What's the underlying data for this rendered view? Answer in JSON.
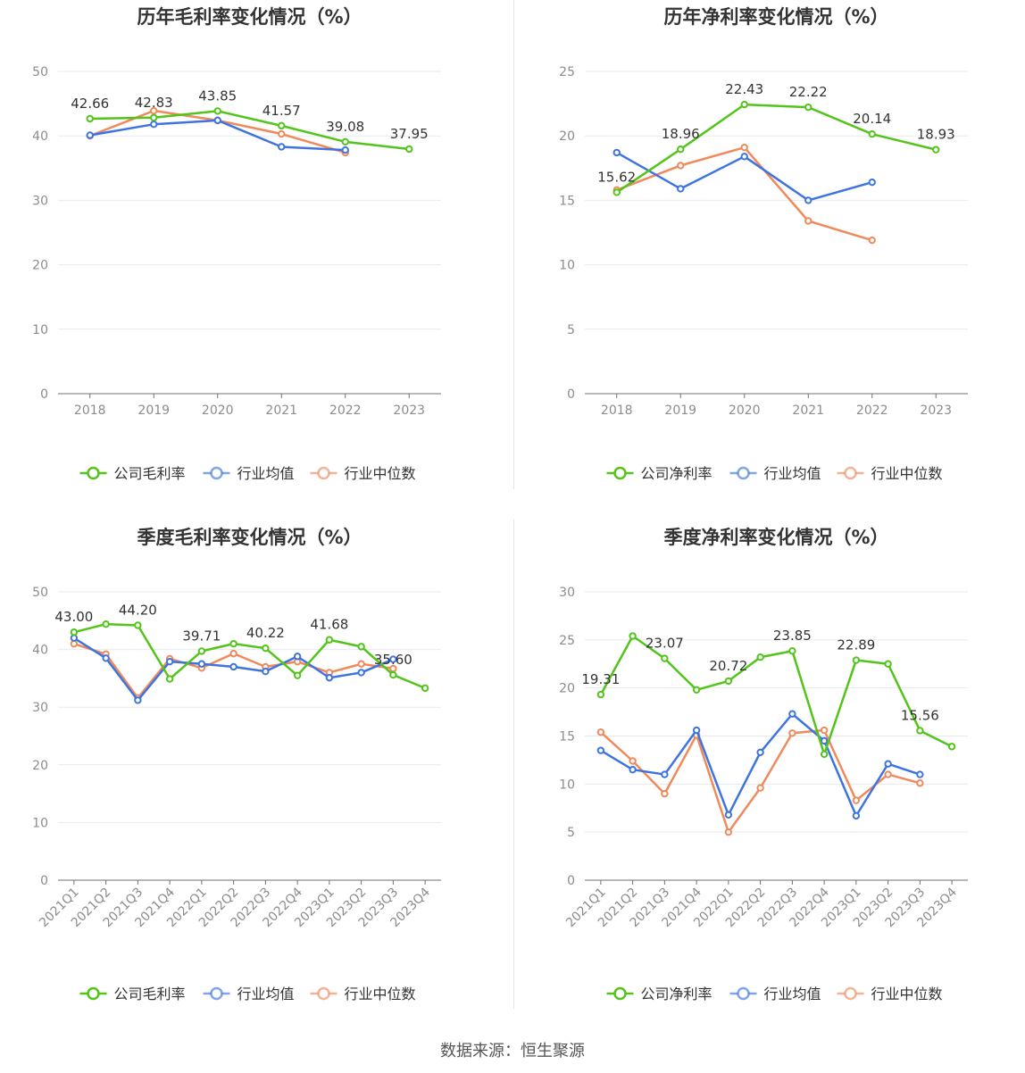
{
  "colors": {
    "company": "#52c41a",
    "avg": "#3e74e0",
    "median": "#f08a5d",
    "grid": "#e6e9f0",
    "axis": "#6e7079",
    "tick": "#8c8c8c",
    "title": "#333333"
  },
  "legend": {
    "company_gross": "公司毛利率",
    "company_net": "公司净利率",
    "avg": "行业均值",
    "median": "行业中位数"
  },
  "footer": "数据来源：恒生聚源",
  "chart_data": [
    {
      "id": "annual-gross",
      "type": "line",
      "title": "历年毛利率变化情况（%）",
      "categories": [
        "2018",
        "2019",
        "2020",
        "2021",
        "2022",
        "2023"
      ],
      "ylim": [
        0,
        50
      ],
      "yticks": [
        0,
        10,
        20,
        30,
        40,
        50
      ],
      "series": [
        {
          "name": "公司毛利率",
          "key": "company",
          "values": [
            42.66,
            42.83,
            43.85,
            41.57,
            39.08,
            37.95
          ]
        },
        {
          "name": "行业均值",
          "key": "avg",
          "values": [
            40.1,
            41.8,
            42.4,
            38.3,
            37.8,
            null
          ]
        },
        {
          "name": "行业中位数",
          "key": "median",
          "values": [
            40.0,
            43.9,
            42.4,
            40.3,
            37.4,
            null
          ]
        }
      ],
      "labels": [
        {
          "i": 0,
          "text": "42.66"
        },
        {
          "i": 1,
          "text": "42.83"
        },
        {
          "i": 2,
          "text": "43.85"
        },
        {
          "i": 3,
          "text": "41.57"
        },
        {
          "i": 4,
          "text": "39.08"
        },
        {
          "i": 5,
          "text": "37.95"
        }
      ]
    },
    {
      "id": "annual-net",
      "type": "line",
      "title": "历年净利率变化情况（%）",
      "categories": [
        "2018",
        "2019",
        "2020",
        "2021",
        "2022",
        "2023"
      ],
      "ylim": [
        0,
        25
      ],
      "yticks": [
        0,
        5,
        10,
        15,
        20,
        25
      ],
      "series": [
        {
          "name": "公司净利率",
          "key": "company",
          "values": [
            15.62,
            18.96,
            22.43,
            22.22,
            20.14,
            18.93
          ]
        },
        {
          "name": "行业均值",
          "key": "avg",
          "values": [
            18.7,
            15.9,
            18.4,
            15.0,
            16.4,
            null
          ]
        },
        {
          "name": "行业中位数",
          "key": "median",
          "values": [
            15.8,
            17.7,
            19.1,
            13.4,
            11.9,
            null
          ]
        }
      ],
      "labels": [
        {
          "i": 0,
          "text": "15.62"
        },
        {
          "i": 1,
          "text": "18.96"
        },
        {
          "i": 2,
          "text": "22.43"
        },
        {
          "i": 3,
          "text": "22.22"
        },
        {
          "i": 4,
          "text": "20.14"
        },
        {
          "i": 5,
          "text": "18.93"
        }
      ]
    },
    {
      "id": "quarterly-gross",
      "type": "line",
      "title": "季度毛利率变化情况（%）",
      "categories": [
        "2021Q1",
        "2021Q2",
        "2021Q3",
        "2021Q4",
        "2022Q1",
        "2022Q2",
        "2022Q3",
        "2022Q4",
        "2023Q1",
        "2023Q2",
        "2023Q3",
        "2023Q4"
      ],
      "ylim": [
        0,
        50
      ],
      "yticks": [
        0,
        10,
        20,
        30,
        40,
        50
      ],
      "series": [
        {
          "name": "公司毛利率",
          "key": "company",
          "values": [
            43.0,
            44.4,
            44.2,
            34.9,
            39.71,
            41.0,
            40.22,
            35.5,
            41.68,
            40.5,
            35.6,
            33.3
          ]
        },
        {
          "name": "行业均值",
          "key": "avg",
          "values": [
            42.0,
            38.5,
            31.2,
            37.9,
            37.5,
            37.0,
            36.2,
            38.8,
            35.1,
            36.0,
            38.3,
            null
          ]
        },
        {
          "name": "行业中位数",
          "key": "median",
          "values": [
            41.0,
            39.2,
            31.6,
            38.4,
            36.8,
            39.3,
            37.0,
            37.9,
            36.0,
            37.5,
            36.7,
            null
          ]
        }
      ],
      "labels": [
        {
          "i": 0,
          "text": "43.00"
        },
        {
          "i": 2,
          "text": "44.20"
        },
        {
          "i": 4,
          "text": "39.71"
        },
        {
          "i": 6,
          "text": "40.22"
        },
        {
          "i": 8,
          "text": "41.68"
        },
        {
          "i": 10,
          "text": "35.60"
        }
      ]
    },
    {
      "id": "quarterly-net",
      "type": "line",
      "title": "季度净利率变化情况（%）",
      "categories": [
        "2021Q1",
        "2021Q2",
        "2021Q3",
        "2021Q4",
        "2022Q1",
        "2022Q2",
        "2022Q3",
        "2022Q4",
        "2023Q1",
        "2023Q2",
        "2023Q3",
        "2023Q4"
      ],
      "ylim": [
        0,
        30
      ],
      "yticks": [
        0,
        5,
        10,
        15,
        20,
        25,
        30
      ],
      "series": [
        {
          "name": "公司净利率",
          "key": "company",
          "values": [
            19.31,
            25.4,
            23.07,
            19.8,
            20.72,
            23.2,
            23.85,
            13.1,
            22.89,
            22.5,
            15.56,
            13.9
          ]
        },
        {
          "name": "行业均值",
          "key": "avg",
          "values": [
            13.5,
            11.5,
            11.0,
            15.6,
            6.8,
            13.3,
            17.3,
            14.5,
            6.7,
            12.1,
            11.0,
            null
          ]
        },
        {
          "name": "行业中位数",
          "key": "median",
          "values": [
            15.4,
            12.4,
            9.0,
            15.1,
            5.0,
            9.6,
            15.3,
            15.6,
            8.3,
            11.0,
            10.1,
            null
          ]
        }
      ],
      "labels": [
        {
          "i": 0,
          "text": "19.31"
        },
        {
          "i": 2,
          "text": "23.07"
        },
        {
          "i": 4,
          "text": "20.72"
        },
        {
          "i": 6,
          "text": "23.85"
        },
        {
          "i": 8,
          "text": "22.89"
        },
        {
          "i": 10,
          "text": "15.56"
        }
      ]
    }
  ]
}
